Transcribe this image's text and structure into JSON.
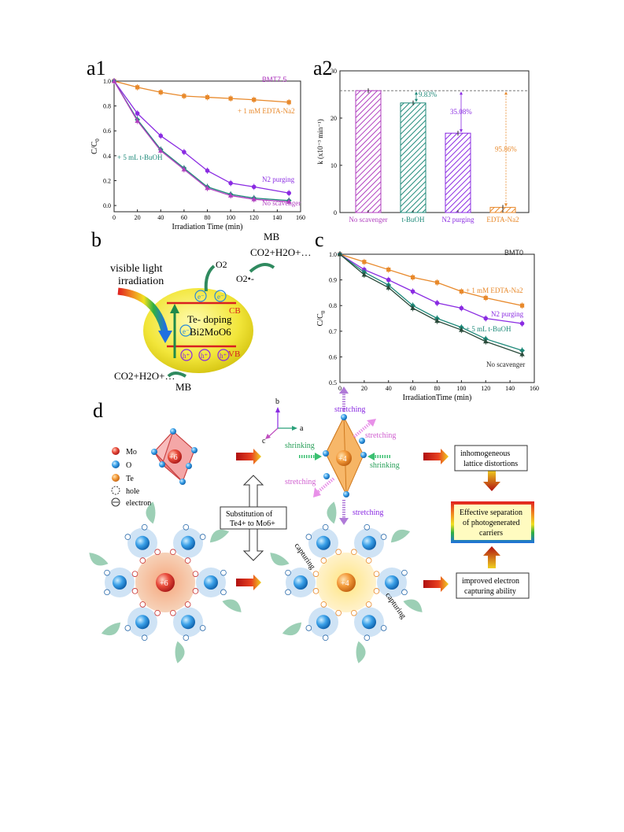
{
  "panels": {
    "a1": "a1",
    "a2": "a2",
    "b": "b",
    "c": "c",
    "d": "d"
  },
  "colors": {
    "orange": "#e8892b",
    "teal": "#1f8a7a",
    "purple": "#8a2be2",
    "violet": "#b03fbf",
    "navy": "#333366",
    "dkteal": "#2a5e5a",
    "darkgreen": "#2e6b4f"
  },
  "chart_data": [
    {
      "id": "a1",
      "type": "line",
      "xlabel": "Irradiation Time (min)",
      "ylabel": "C/C0",
      "xlim": [
        0,
        160
      ],
      "ylim": [
        -0.05,
        1.0
      ],
      "xticks": [
        "0",
        "20",
        "40",
        "60",
        "80",
        "100",
        "120",
        "140",
        "160"
      ],
      "yticks": [
        "0.0",
        "0.2",
        "0.4",
        "0.6",
        "0.8",
        "1.0"
      ],
      "annotation": "BMT7.5",
      "x": [
        0,
        20,
        40,
        60,
        80,
        100,
        120,
        150
      ],
      "series": [
        {
          "name": "+ 1 mM EDTA-Na2",
          "color": "#e8892b",
          "values": [
            1.0,
            0.95,
            0.91,
            0.88,
            0.87,
            0.86,
            0.85,
            0.83
          ]
        },
        {
          "name": "N2 purging",
          "color": "#8a2be2",
          "values": [
            1.0,
            0.74,
            0.56,
            0.43,
            0.28,
            0.18,
            0.15,
            0.1
          ]
        },
        {
          "name": "+ 5 mL t-BuOH",
          "color": "#1f8a7a",
          "values": [
            1.0,
            0.69,
            0.45,
            0.3,
            0.15,
            0.09,
            0.06,
            0.04
          ]
        },
        {
          "name": "No scavenger",
          "color": "#b03fbf",
          "values": [
            1.0,
            0.68,
            0.44,
            0.29,
            0.14,
            0.08,
            0.05,
            0.03
          ]
        }
      ]
    },
    {
      "id": "a2",
      "type": "bar",
      "ylabel": "k (x10-3 min-1)",
      "ylim": [
        0,
        30
      ],
      "yticks": [
        "0",
        "10",
        "20",
        "30"
      ],
      "categories": [
        "No scavenger",
        "t-BuOH",
        "N2 purging",
        "EDTA-Na2"
      ],
      "values": [
        25.8,
        23.2,
        16.8,
        1.1
      ],
      "colors": [
        "#b03fbf",
        "#1f8a7a",
        "#8a2be2",
        "#e8892b"
      ],
      "annotations": [
        "9.83%",
        "35.08%",
        "95.86%"
      ]
    },
    {
      "id": "c",
      "type": "line",
      "xlabel": "IrradiationTime (min)",
      "ylabel": "C/C0",
      "xlim": [
        0,
        160
      ],
      "ylim": [
        0.5,
        1.0
      ],
      "xticks": [
        "0",
        "20",
        "40",
        "60",
        "80",
        "100",
        "120",
        "140",
        "160"
      ],
      "yticks": [
        "0.5",
        "0.6",
        "0.7",
        "0.8",
        "0.9",
        "1.0"
      ],
      "annotation": "BMT0",
      "x": [
        0,
        20,
        40,
        60,
        80,
        100,
        120,
        150
      ],
      "series": [
        {
          "name": "+ 1 mM EDTA-Na2",
          "color": "#e8892b",
          "values": [
            1.0,
            0.97,
            0.94,
            0.91,
            0.89,
            0.855,
            0.83,
            0.8
          ]
        },
        {
          "name": "N2 purging",
          "color": "#8a2be2",
          "values": [
            1.0,
            0.94,
            0.9,
            0.855,
            0.81,
            0.79,
            0.75,
            0.73
          ]
        },
        {
          "name": "+ 5 mL t-BuOH",
          "color": "#1f8a7a",
          "values": [
            1.0,
            0.93,
            0.88,
            0.8,
            0.75,
            0.715,
            0.67,
            0.625
          ]
        },
        {
          "name": "No scavenger",
          "color": "#2a4a3a",
          "values": [
            1.0,
            0.92,
            0.87,
            0.79,
            0.74,
            0.705,
            0.66,
            0.61
          ]
        }
      ]
    }
  ],
  "panel_b": {
    "visible_light": "visible light",
    "irradiation": "irradiation",
    "o2": "O2",
    "o2rad": "O2•-",
    "mb_top": "MB",
    "co2_top": "CO2+H2O+…",
    "cb": "CB",
    "vb": "VB",
    "doping": "Te- doping",
    "material": "Bi2MoO6",
    "co2_bottom": "CO2+H2O+…",
    "mb_bottom": "MB",
    "electron": "e-",
    "hole": "h+"
  },
  "panel_d": {
    "legend": [
      "Mo",
      "O",
      "Te",
      "hole",
      "electron"
    ],
    "plus6": "+6",
    "plus4": "+4",
    "axes": [
      "b",
      "a",
      "c"
    ],
    "stretching": "stretching",
    "shrinking": "shrinking",
    "substitution_line1": "Substitution of",
    "substitution_line2": "Te4+ to Mo6+",
    "box_distortion": [
      "inhomogeneous",
      "lattice distortions"
    ],
    "box_separation": [
      "Effective separation",
      "of photogenerated",
      "carriers"
    ],
    "box_capture": [
      "improved electron",
      "capturing ability"
    ],
    "capturing": "capturing"
  }
}
